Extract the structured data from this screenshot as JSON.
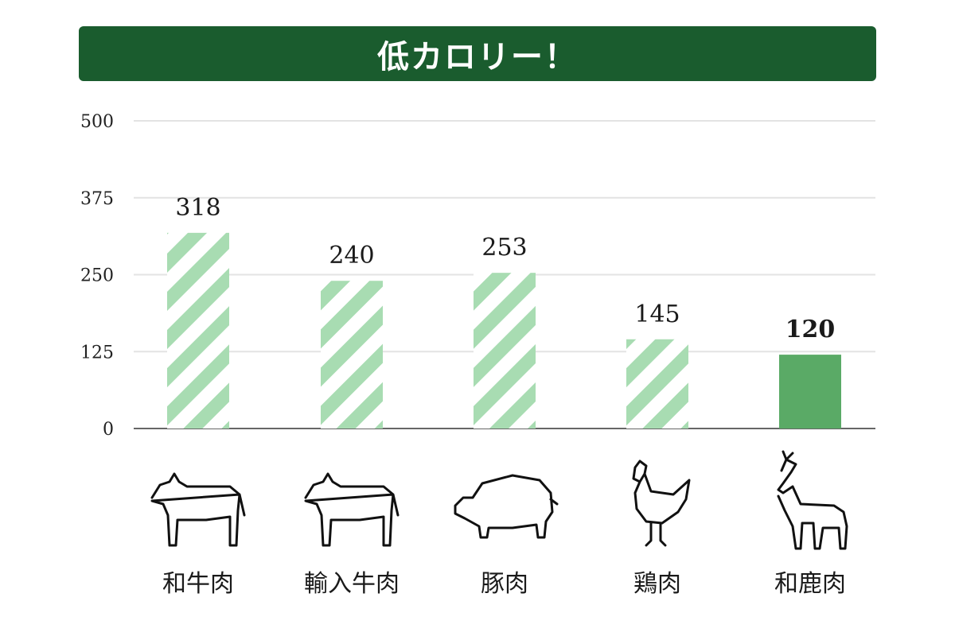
{
  "banner": {
    "title": "低カロリー！",
    "bg_color": "#1a5c2e"
  },
  "chart_data": {
    "type": "bar",
    "categories": [
      "和牛肉",
      "輸入牛肉",
      "豚肉",
      "鶏肉",
      "和鹿肉"
    ],
    "values": [
      318,
      240,
      253,
      145,
      120
    ],
    "ylim": [
      0,
      500
    ],
    "yticks": [
      0,
      125,
      250,
      375,
      500
    ],
    "grid": true,
    "highlight_index": 4,
    "colors": {
      "striped": "#a8dcb2",
      "highlight": "#5aaa66",
      "grid": "#e3e3e3",
      "axis": "#666666"
    },
    "icons": [
      "cow-icon",
      "cow-icon",
      "pig-icon",
      "chicken-icon",
      "deer-icon"
    ]
  }
}
